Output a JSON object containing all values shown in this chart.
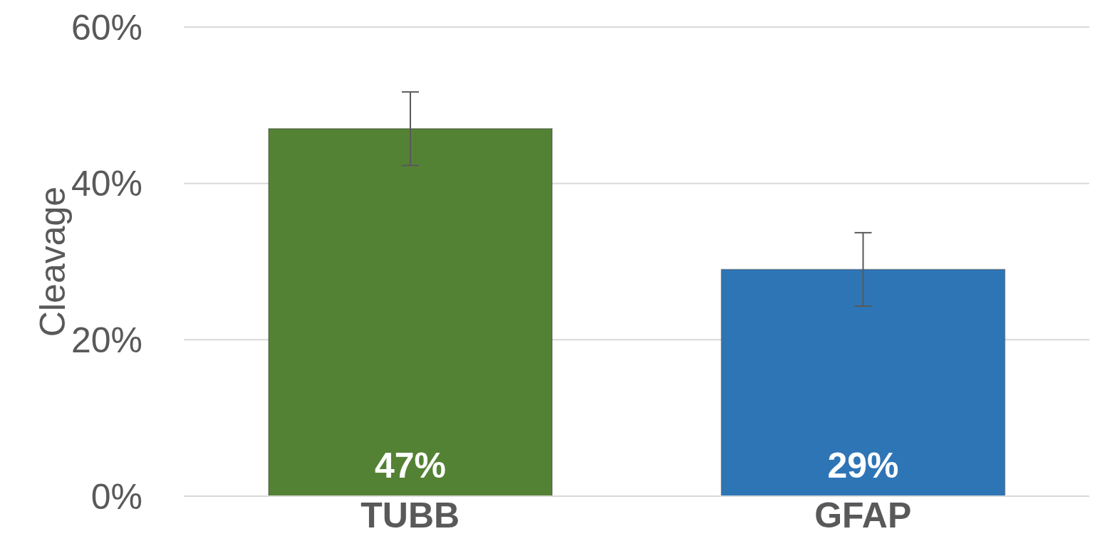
{
  "chart_data": {
    "type": "bar",
    "ylabel": "Cleavage",
    "categories": [
      "TUBB",
      "GFAP"
    ],
    "values": [
      47,
      29
    ],
    "colors": [
      "#548235",
      "#2e75b6"
    ],
    "value_labels": [
      "47%",
      "29%"
    ],
    "errors": [
      4.7,
      4.7
    ],
    "ylim": [
      0,
      60
    ],
    "yticks": [
      {
        "value": 0,
        "label": "0%"
      },
      {
        "value": 20,
        "label": "20%"
      },
      {
        "value": 40,
        "label": "40%"
      },
      {
        "value": 60,
        "label": "60%"
      }
    ],
    "grid": "y",
    "legend": false
  }
}
